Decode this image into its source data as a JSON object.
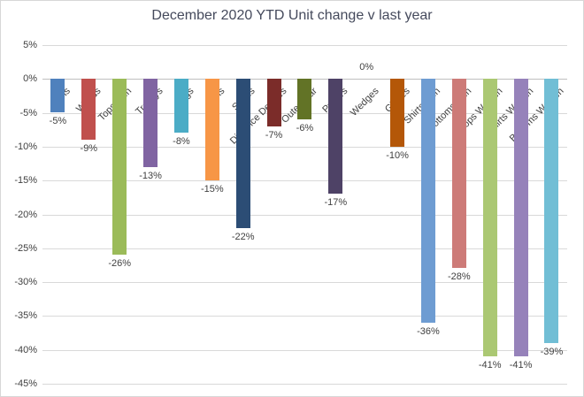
{
  "chart": {
    "title": "December 2020 YTD Unit change v last year"
  },
  "chart_data": {
    "type": "bar",
    "title": "December 2020 YTD Unit change v last year",
    "xlabel": "",
    "ylabel": "",
    "categories": [
      "Irons",
      "Woods",
      "Tops Men",
      "Trolleys",
      "Bags",
      "Balls",
      "Shoes",
      "Distance Devices",
      "Outerwear",
      "Putters",
      "Wedges",
      "Gloves",
      "Shirts Men",
      "Bottoms Men",
      "Tops Women",
      "Shirts Women",
      "Bottoms Women"
    ],
    "values": [
      -5,
      -9,
      -26,
      -13,
      -8,
      -15,
      -22,
      -7,
      -6,
      -17,
      0,
      -10,
      -36,
      -28,
      -41,
      -41,
      -39
    ],
    "data_labels": [
      "-5%",
      "-9%",
      "-26%",
      "-13%",
      "-8%",
      "-15%",
      "-22%",
      "-7%",
      "-6%",
      "-17%",
      "0%",
      "-10%",
      "-36%",
      "-28%",
      "-41%",
      "-41%",
      "-39%"
    ],
    "bar_colors": [
      "#4F81BD",
      "#C0504D",
      "#9BBB59",
      "#8064A2",
      "#4BACC6",
      "#F79646",
      "#2C4D75",
      "#7B2C29",
      "#627326",
      "#4E4266",
      "#31859C",
      "#B45708",
      "#6E9CD2",
      "#CD7B78",
      "#ABC873",
      "#9682BA",
      "#71BED5"
    ],
    "y_ticks": [
      "5%",
      "0%",
      "-5%",
      "-10%",
      "-15%",
      "-20%",
      "-25%",
      "-30%",
      "-35%",
      "-40%",
      "-45%"
    ],
    "y_tick_values": [
      5,
      0,
      -5,
      -10,
      -15,
      -20,
      -25,
      -30,
      -35,
      -40,
      -45
    ],
    "ylim": [
      -45,
      5
    ],
    "grid": true,
    "legend": false,
    "data_labels_shown": true
  },
  "colors": {
    "background": "#FFFFFF",
    "chart_border": "#D7D7D7",
    "gridline": "#D9D9D9",
    "zero_axis_line": "#BFBFBF",
    "title_text": "#454A5C",
    "label_text": "#404040"
  }
}
